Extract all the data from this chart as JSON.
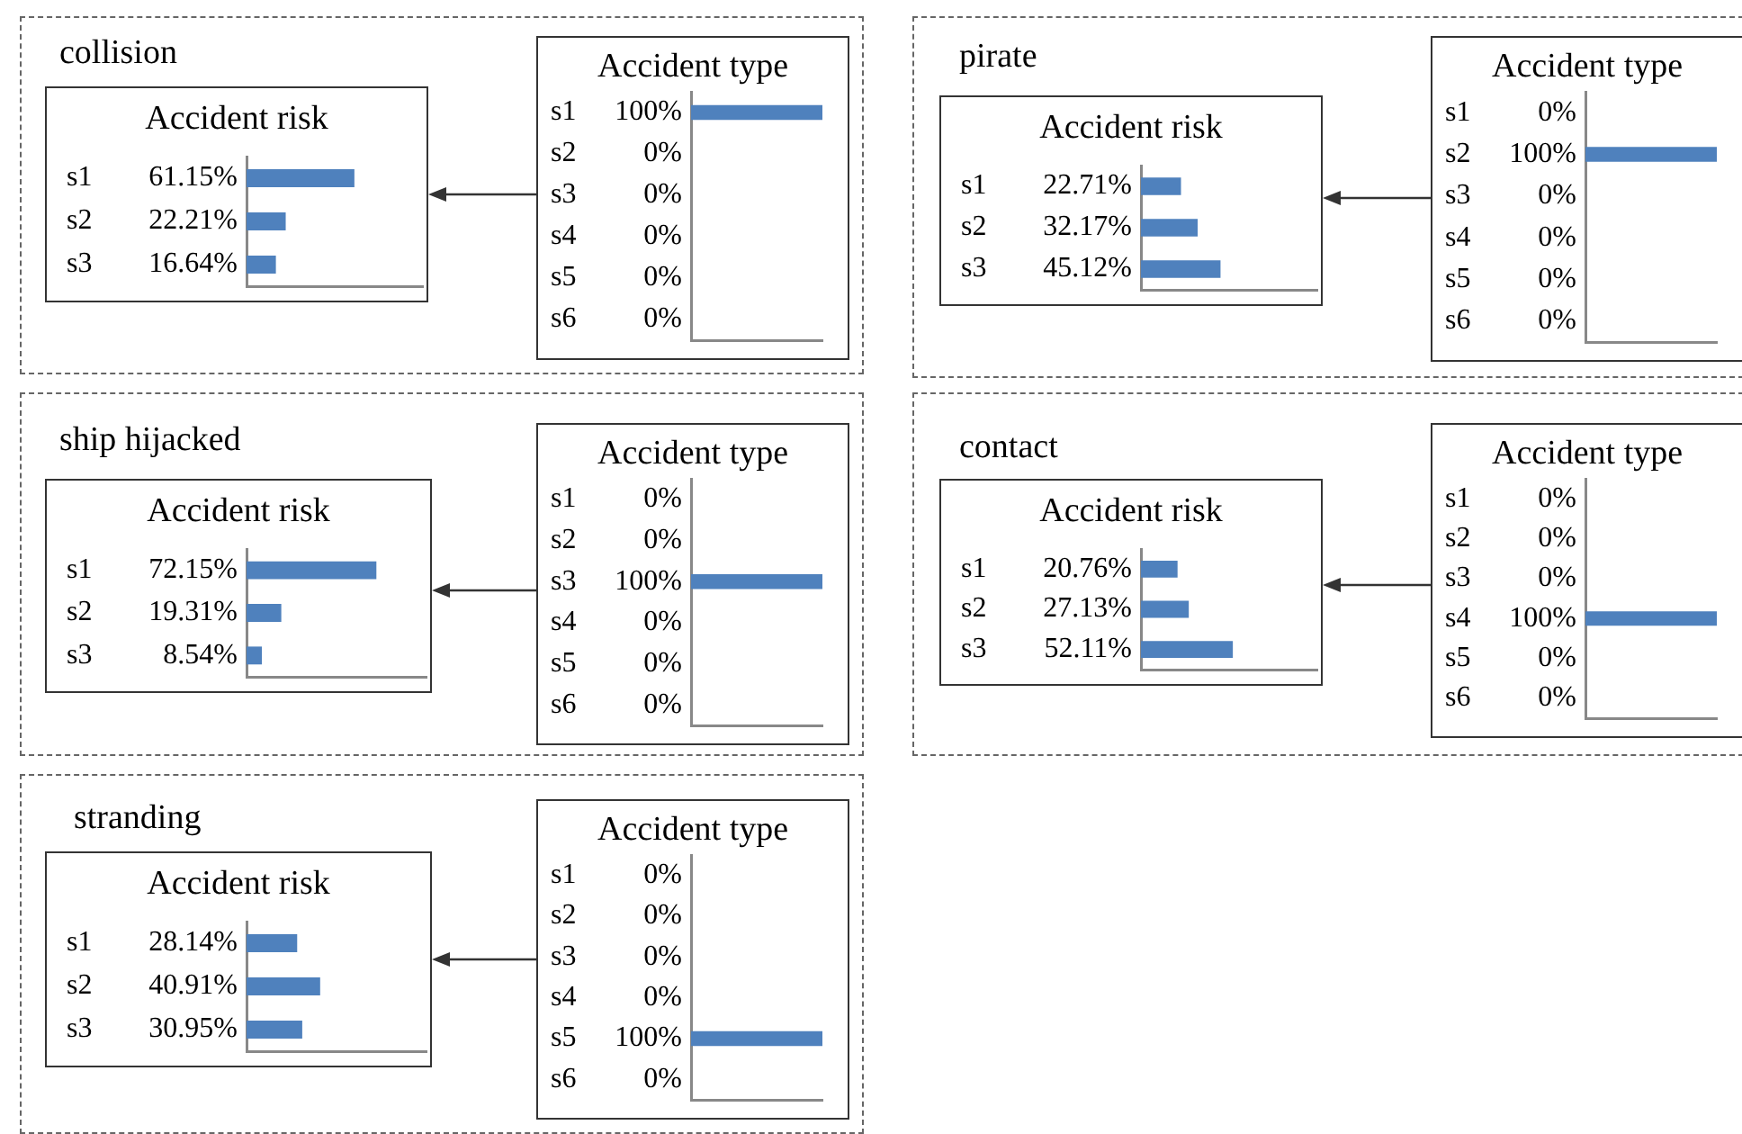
{
  "chart_data": [
    {
      "type": "bar",
      "orientation": "horizontal",
      "title": "Accident risk",
      "annotations": [
        "collision"
      ],
      "categories": [
        "s1",
        "s2",
        "s3"
      ],
      "values": [
        61.15,
        22.21,
        16.64
      ],
      "value_labels": [
        "61.15%",
        "22.21%",
        "16.64%"
      ],
      "color": "#4f81bd",
      "xlim": [
        0,
        100
      ],
      "tick_labels": "y"
    },
    {
      "type": "bar",
      "orientation": "horizontal",
      "title": "Accident type",
      "categories": [
        "s1",
        "s2",
        "s3",
        "s4",
        "s5",
        "s6"
      ],
      "values": [
        100,
        0,
        0,
        0,
        0,
        0
      ],
      "value_labels": [
        "100%",
        "0%",
        "0%",
        "0%",
        "0%",
        "0%"
      ],
      "color": "#4f81bd",
      "tick_labels": "y"
    },
    {
      "type": "bar",
      "orientation": "horizontal",
      "title": "Accident risk",
      "annotations": [
        "pirate"
      ],
      "categories": [
        "s1",
        "s2",
        "s3"
      ],
      "values": [
        22.71,
        32.17,
        45.12
      ],
      "value_labels": [
        "22.71%",
        "32.17%",
        "45.12%"
      ],
      "color": "#4f81bd",
      "xlim": [
        0,
        100
      ],
      "tick_labels": "y"
    },
    {
      "type": "bar",
      "orientation": "horizontal",
      "title": "Accident type",
      "categories": [
        "s1",
        "s2",
        "s3",
        "s4",
        "s5",
        "s6"
      ],
      "values": [
        0,
        100,
        0,
        0,
        0,
        0
      ],
      "value_labels": [
        "0%",
        "100%",
        "0%",
        "0%",
        "0%",
        "0%"
      ],
      "color": "#4f81bd",
      "tick_labels": "y"
    },
    {
      "type": "bar",
      "orientation": "horizontal",
      "title": "Accident risk",
      "annotations": [
        "ship hijacked"
      ],
      "categories": [
        "s1",
        "s2",
        "s3"
      ],
      "values": [
        72.15,
        19.31,
        8.54
      ],
      "value_labels": [
        "72.15%",
        "19.31%",
        "8.54%"
      ],
      "color": "#4f81bd",
      "xlim": [
        0,
        100
      ],
      "tick_labels": "y"
    },
    {
      "type": "bar",
      "orientation": "horizontal",
      "title": "Accident type",
      "categories": [
        "s1",
        "s2",
        "s3",
        "s4",
        "s5",
        "s6"
      ],
      "values": [
        0,
        0,
        100,
        0,
        0,
        0
      ],
      "value_labels": [
        "0%",
        "0%",
        "100%",
        "0%",
        "0%",
        "0%"
      ],
      "color": "#4f81bd",
      "tick_labels": "y"
    },
    {
      "type": "bar",
      "orientation": "horizontal",
      "title": "Accident risk",
      "annotations": [
        "contact"
      ],
      "categories": [
        "s1",
        "s2",
        "s3"
      ],
      "values": [
        20.76,
        27.13,
        52.11
      ],
      "value_labels": [
        "20.76%",
        "27.13%",
        "52.11%"
      ],
      "color": "#4f81bd",
      "xlim": [
        0,
        100
      ],
      "tick_labels": "y"
    },
    {
      "type": "bar",
      "orientation": "horizontal",
      "title": "Accident type",
      "categories": [
        "s1",
        "s2",
        "s3",
        "s4",
        "s5",
        "s6"
      ],
      "values": [
        0,
        0,
        0,
        100,
        0,
        0
      ],
      "value_labels": [
        "0%",
        "0%",
        "0%",
        "100%",
        "0%",
        "0%"
      ],
      "color": "#4f81bd",
      "tick_labels": "y"
    },
    {
      "type": "bar",
      "orientation": "horizontal",
      "title": "Accident risk",
      "annotations": [
        "stranding"
      ],
      "categories": [
        "s1",
        "s2",
        "s3"
      ],
      "values": [
        28.14,
        40.91,
        30.95
      ],
      "value_labels": [
        "28.14%",
        "40.91%",
        "30.95%"
      ],
      "color": "#4f81bd",
      "xlim": [
        0,
        100
      ],
      "tick_labels": "y"
    },
    {
      "type": "bar",
      "orientation": "horizontal",
      "title": "Accident type",
      "categories": [
        "s1",
        "s2",
        "s3",
        "s4",
        "s5",
        "s6"
      ],
      "values": [
        0,
        0,
        0,
        0,
        100,
        0
      ],
      "value_labels": [
        "0%",
        "0%",
        "0%",
        "0%",
        "100%",
        "0%"
      ],
      "color": "#4f81bd",
      "tick_labels": "y"
    }
  ]
}
